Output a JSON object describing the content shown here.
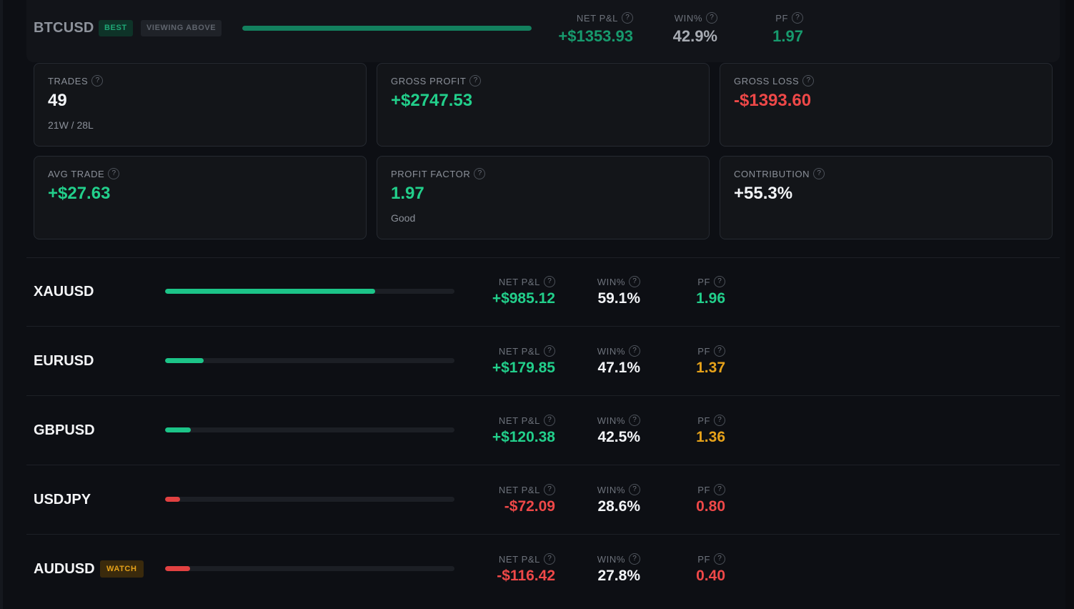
{
  "top": {
    "symbol": "BTCUSD",
    "badge_best": "BEST",
    "badge_view": "VIEWING ABOVE",
    "bar_fraction": 1.0,
    "net_label": "NET P&L",
    "net_value": "+$1353.93",
    "win_label": "WIN%",
    "win_value": "42.9%",
    "pf_label": "PF",
    "pf_value": "1.97"
  },
  "help_glyph": "?",
  "cards": {
    "trades": {
      "label": "TRADES",
      "value": "49",
      "sub": "21W / 28L"
    },
    "gross_profit": {
      "label": "GROSS PROFIT",
      "value": "+$2747.53"
    },
    "gross_loss": {
      "label": "GROSS LOSS",
      "value": "-$1393.60"
    },
    "avg_trade": {
      "label": "AVG TRADE",
      "value": "+$27.63"
    },
    "profit_factor": {
      "label": "PROFIT FACTOR",
      "value": "1.97",
      "sub": "Good"
    },
    "contribution": {
      "label": "CONTRIBUTION",
      "value": "+55.3%"
    }
  },
  "row_labels": {
    "net": "NET P&L",
    "win": "WIN%",
    "pf": "PF"
  },
  "rows": [
    {
      "symbol": "XAUUSD",
      "bar_fraction": 0.727,
      "bar_tone": "green",
      "net": "+$985.12",
      "net_tone": "green",
      "win": "59.1%",
      "pf": "1.96",
      "pf_tone": "green"
    },
    {
      "symbol": "EURUSD",
      "bar_fraction": 0.133,
      "bar_tone": "green",
      "net": "+$179.85",
      "net_tone": "green",
      "win": "47.1%",
      "pf": "1.37",
      "pf_tone": "amber"
    },
    {
      "symbol": "GBPUSD",
      "bar_fraction": 0.089,
      "bar_tone": "green",
      "net": "+$120.38",
      "net_tone": "green",
      "win": "42.5%",
      "pf": "1.36",
      "pf_tone": "amber"
    },
    {
      "symbol": "USDJPY",
      "bar_fraction": 0.053,
      "bar_tone": "red",
      "net": "-$72.09",
      "net_tone": "red",
      "win": "28.6%",
      "pf": "0.80",
      "pf_tone": "red"
    },
    {
      "symbol": "AUDUSD",
      "badge": "WATCH",
      "bar_fraction": 0.086,
      "bar_tone": "red",
      "net": "-$116.42",
      "net_tone": "red",
      "win": "27.8%",
      "pf": "0.40",
      "pf_tone": "red"
    }
  ],
  "colors": {
    "green": "#22cf8b",
    "red": "#ee4848",
    "amber": "#e6a21a",
    "background": "#0d0f14"
  }
}
